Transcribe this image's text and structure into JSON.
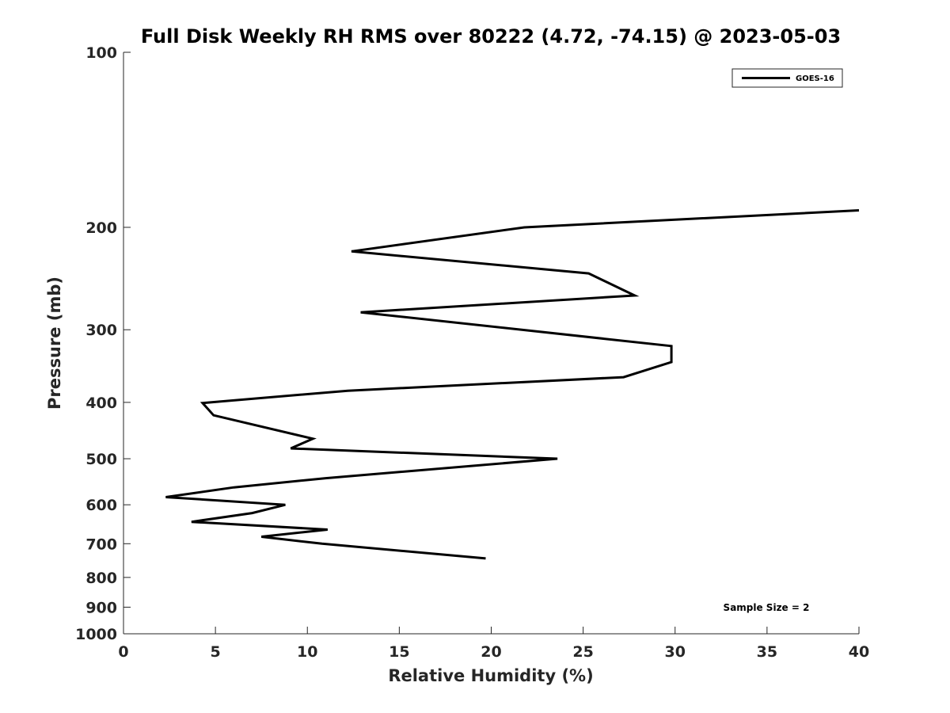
{
  "chart_data": {
    "type": "line",
    "title": "Full Disk Weekly RH RMS over 80222 (4.72, -74.15) @ 2023-05-03",
    "xlabel": "Relative Humidity (%)",
    "ylabel": "Pressure (mb)",
    "xlim": [
      0,
      40
    ],
    "ylim": [
      100,
      1000
    ],
    "yscale": "log",
    "y_reversed": true,
    "grid": false,
    "legend_position": "top-right",
    "x_ticks": [
      "0",
      "5",
      "10",
      "15",
      "20",
      "25",
      "30",
      "35",
      "40"
    ],
    "y_ticks": [
      {
        "value": 100,
        "label": "100"
      },
      {
        "value": 200,
        "label": "200"
      },
      {
        "value": 300,
        "label": "300"
      },
      {
        "value": 400,
        "label": "400"
      },
      {
        "value": 500,
        "label": "500"
      },
      {
        "value": 600,
        "label": "600"
      },
      {
        "value": 700,
        "label": "700"
      },
      {
        "value": 800,
        "label": "800"
      },
      {
        "value": 900,
        "label": "900"
      },
      {
        "value": 1000,
        "label": "1000"
      }
    ],
    "series": [
      {
        "name": "GOES-16",
        "color": "#000000",
        "points": [
          {
            "x": 40.0,
            "p": 187
          },
          {
            "x": 21.8,
            "p": 200
          },
          {
            "x": 12.4,
            "p": 220
          },
          {
            "x": 25.3,
            "p": 240
          },
          {
            "x": 27.8,
            "p": 262
          },
          {
            "x": 12.9,
            "p": 280
          },
          {
            "x": 29.8,
            "p": 320
          },
          {
            "x": 29.8,
            "p": 341
          },
          {
            "x": 27.2,
            "p": 362
          },
          {
            "x": 12.2,
            "p": 382
          },
          {
            "x": 4.3,
            "p": 401
          },
          {
            "x": 4.9,
            "p": 421
          },
          {
            "x": 10.3,
            "p": 462
          },
          {
            "x": 9.1,
            "p": 480
          },
          {
            "x": 23.6,
            "p": 500
          },
          {
            "x": 11.0,
            "p": 540
          },
          {
            "x": 6.0,
            "p": 560
          },
          {
            "x": 2.3,
            "p": 582
          },
          {
            "x": 8.8,
            "p": 600
          },
          {
            "x": 7.0,
            "p": 620
          },
          {
            "x": 3.7,
            "p": 642
          },
          {
            "x": 11.1,
            "p": 662
          },
          {
            "x": 7.5,
            "p": 681
          },
          {
            "x": 10.8,
            "p": 700
          },
          {
            "x": 19.7,
            "p": 742
          }
        ]
      }
    ],
    "annotations": [
      {
        "text": "Sample Size = 2",
        "position": "bottom-right"
      }
    ]
  }
}
